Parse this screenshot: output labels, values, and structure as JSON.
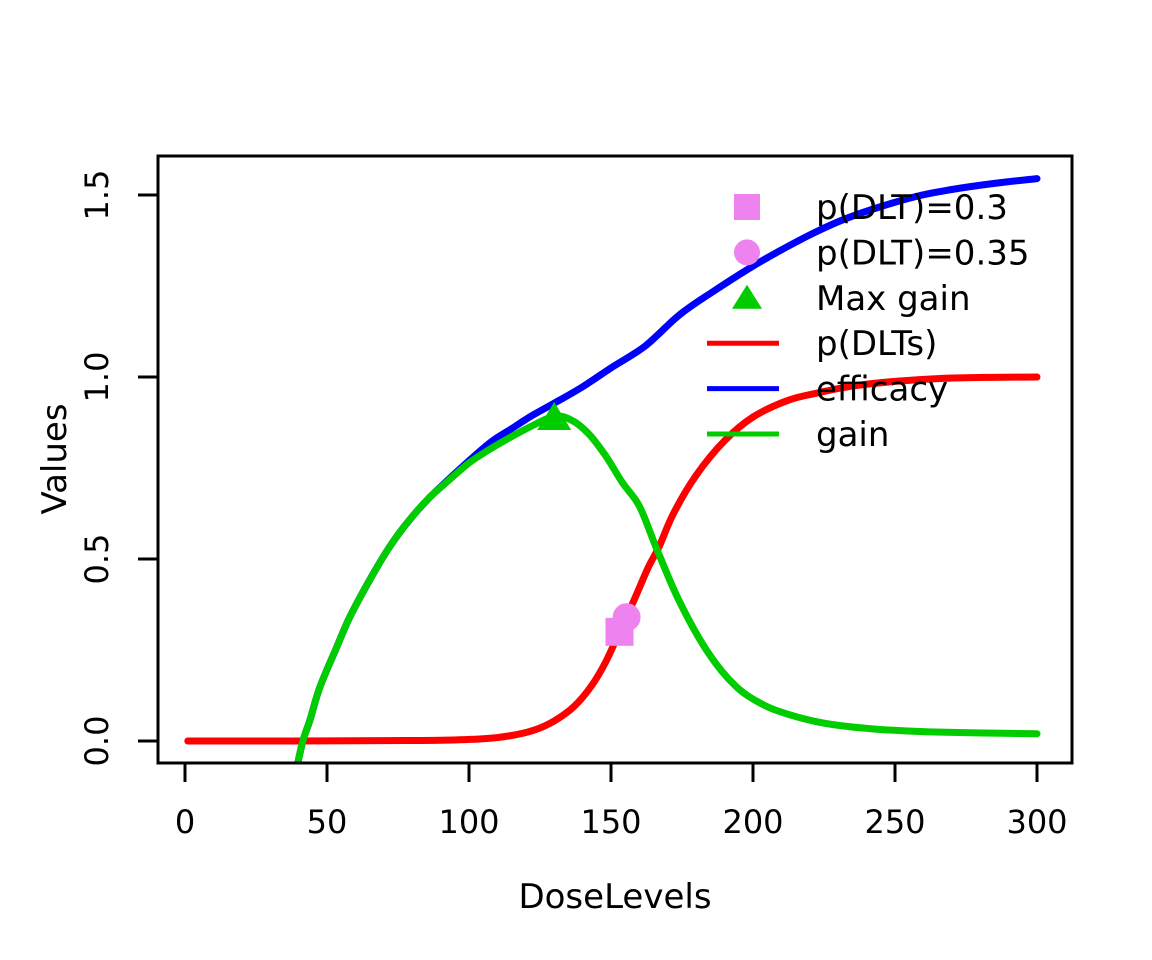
{
  "figure": {
    "background": "#FFFFFF",
    "axis_color": "#000000"
  },
  "chart_data": {
    "type": "line",
    "title": "",
    "xlabel": "DoseLevels",
    "ylabel": "Values",
    "xlim": [
      -9,
      312
    ],
    "ylim": [
      -0.06,
      1.61
    ],
    "grid": false,
    "legend_position": "top-right",
    "x_ticks": [
      {
        "value": 0,
        "label": "0"
      },
      {
        "value": 50,
        "label": "50"
      },
      {
        "value": 100,
        "label": "100"
      },
      {
        "value": 150,
        "label": "150"
      },
      {
        "value": 200,
        "label": "200"
      },
      {
        "value": 250,
        "label": "250"
      },
      {
        "value": 300,
        "label": "300"
      }
    ],
    "y_ticks": [
      {
        "value": 0.0,
        "label": "0.0"
      },
      {
        "value": 0.5,
        "label": "0.5"
      },
      {
        "value": 1.0,
        "label": "1.0"
      },
      {
        "value": 1.5,
        "label": "1.5"
      }
    ],
    "series": [
      {
        "name": "p(DLTs)",
        "color": "#FF0000",
        "points": [
          [
            1,
            0
          ],
          [
            40,
            0
          ],
          [
            70,
            0.001
          ],
          [
            90,
            0.002
          ],
          [
            105,
            0.006
          ],
          [
            115,
            0.015
          ],
          [
            123,
            0.03
          ],
          [
            130,
            0.055
          ],
          [
            137,
            0.095
          ],
          [
            143,
            0.15
          ],
          [
            148,
            0.215
          ],
          [
            153,
            0.3
          ],
          [
            158,
            0.385
          ],
          [
            163,
            0.475
          ],
          [
            167,
            0.535
          ],
          [
            172,
            0.625
          ],
          [
            180,
            0.73
          ],
          [
            190,
            0.825
          ],
          [
            200,
            0.89
          ],
          [
            212,
            0.935
          ],
          [
            222,
            0.955
          ],
          [
            235,
            0.975
          ],
          [
            250,
            0.988
          ],
          [
            266,
            0.996
          ],
          [
            282,
            0.999
          ],
          [
            300,
            1.0
          ]
        ]
      },
      {
        "name": "efficacy",
        "color": "#0000FF",
        "points": [
          [
            39.8,
            -0.058
          ],
          [
            41.5,
            0
          ],
          [
            44,
            0.058
          ],
          [
            47.5,
            0.148
          ],
          [
            53,
            0.25
          ],
          [
            58,
            0.34
          ],
          [
            65,
            0.442
          ],
          [
            72,
            0.533
          ],
          [
            79,
            0.607
          ],
          [
            86,
            0.668
          ],
          [
            93,
            0.72
          ],
          [
            100,
            0.77
          ],
          [
            108,
            0.823
          ],
          [
            115,
            0.858
          ],
          [
            122,
            0.893
          ],
          [
            130,
            0.928
          ],
          [
            140,
            0.973
          ],
          [
            150,
            1.025
          ],
          [
            162,
            1.085
          ],
          [
            174,
            1.17
          ],
          [
            186,
            1.235
          ],
          [
            198,
            1.295
          ],
          [
            209,
            1.345
          ],
          [
            222,
            1.398
          ],
          [
            233,
            1.436
          ],
          [
            245,
            1.468
          ],
          [
            258,
            1.497
          ],
          [
            270,
            1.515
          ],
          [
            285,
            1.532
          ],
          [
            300,
            1.545
          ]
        ]
      },
      {
        "name": "gain",
        "color": "#00CC00",
        "points": [
          [
            39.8,
            -0.058
          ],
          [
            41.5,
            0
          ],
          [
            44,
            0.058
          ],
          [
            47.5,
            0.148
          ],
          [
            53,
            0.25
          ],
          [
            58,
            0.34
          ],
          [
            65,
            0.442
          ],
          [
            72,
            0.533
          ],
          [
            79,
            0.607
          ],
          [
            86,
            0.668
          ],
          [
            93,
            0.717
          ],
          [
            100,
            0.764
          ],
          [
            107,
            0.8
          ],
          [
            114,
            0.832
          ],
          [
            122,
            0.865
          ],
          [
            130,
            0.892
          ],
          [
            136,
            0.882
          ],
          [
            142,
            0.845
          ],
          [
            148,
            0.785
          ],
          [
            154,
            0.71
          ],
          [
            160,
            0.645
          ],
          [
            166,
            0.53
          ],
          [
            174,
            0.385
          ],
          [
            184,
            0.245
          ],
          [
            194,
            0.15
          ],
          [
            204,
            0.098
          ],
          [
            213,
            0.072
          ],
          [
            223,
            0.052
          ],
          [
            233,
            0.04
          ],
          [
            246,
            0.031
          ],
          [
            262,
            0.025
          ],
          [
            281,
            0.022
          ],
          [
            300,
            0.02
          ]
        ]
      }
    ],
    "markers": [
      {
        "label": "p(DLT)=0.3",
        "symbol": "square",
        "color": "#EE82EE",
        "dose": 153,
        "value": 0.3
      },
      {
        "label": "p(DLT)=0.35",
        "symbol": "circle",
        "color": "#EE82EE",
        "dose": 155.5,
        "value": 0.34
      },
      {
        "label": "Max gain",
        "symbol": "triangle",
        "color": "#00CC00",
        "dose": 130,
        "value": 0.89
      }
    ],
    "legend": [
      {
        "label": "p(DLT)=0.3",
        "color": "#EE82EE",
        "kind": "square"
      },
      {
        "label": "p(DLT)=0.35",
        "color": "#EE82EE",
        "kind": "circle"
      },
      {
        "label": "Max gain",
        "color": "#00CC00",
        "kind": "triangle"
      },
      {
        "label": "p(DLTs)",
        "color": "#FF0000",
        "kind": "line"
      },
      {
        "label": "efficacy",
        "color": "#0000FF",
        "kind": "line"
      },
      {
        "label": "gain",
        "color": "#00CC00",
        "kind": "line"
      }
    ]
  }
}
